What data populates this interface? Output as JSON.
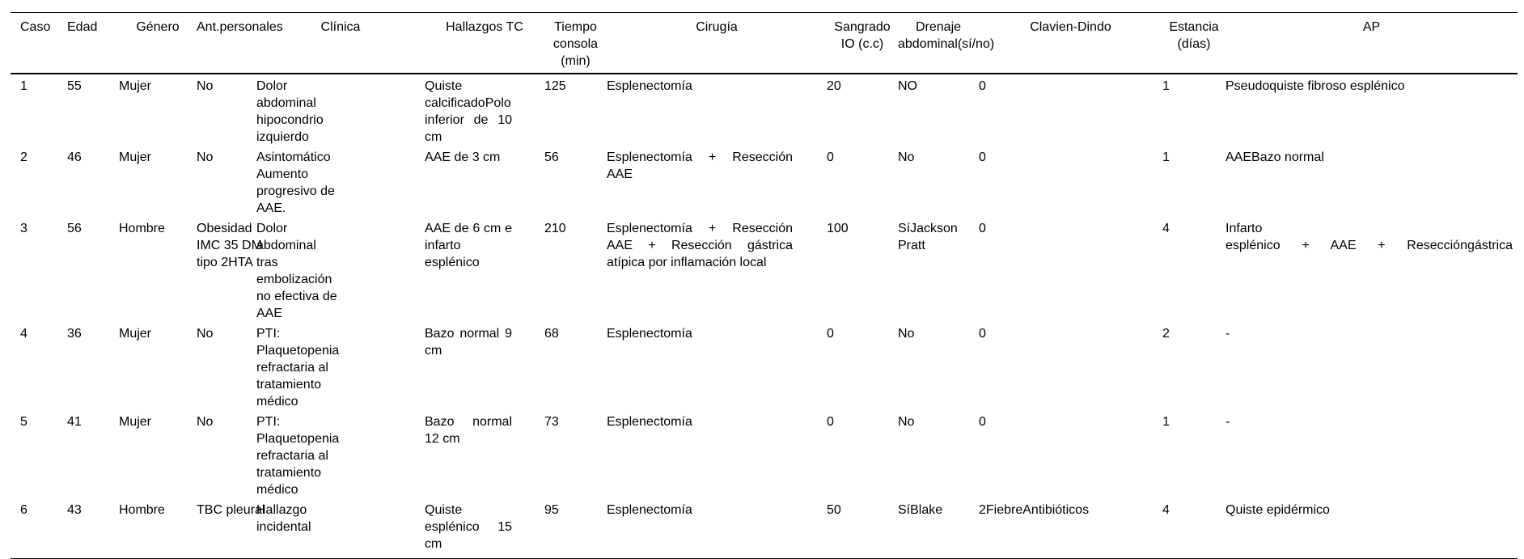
{
  "table": {
    "columns": [
      {
        "key": "caso",
        "label": "Caso"
      },
      {
        "key": "edad",
        "label": "Edad"
      },
      {
        "key": "genero",
        "label": "Género"
      },
      {
        "key": "ant",
        "label": "Ant.personales"
      },
      {
        "key": "clinica",
        "label": "Clínica"
      },
      {
        "key": "tc",
        "label": "Hallazgos TC"
      },
      {
        "key": "tiempo",
        "label": "Tiempo\nconsola\n(min)"
      },
      {
        "key": "cirugia",
        "label": "Cirugía"
      },
      {
        "key": "sangrado",
        "label": "Sangrado\nIO (c.c)"
      },
      {
        "key": "drenaje",
        "label": "Drenaje\nabdominal(sí/no)"
      },
      {
        "key": "clavien",
        "label": "Clavien-Dindo"
      },
      {
        "key": "estancia",
        "label": "Estancia\n(días)"
      },
      {
        "key": "ap",
        "label": "AP"
      }
    ],
    "rows": [
      [
        "1",
        "55",
        "Mujer",
        "No",
        "Dolor abdominal hipocondrio izquierdo",
        "Quiste calcificadoPolo inferior de 10 cm",
        "125",
        "Esplenectomía",
        "20",
        "NO",
        "0",
        "1",
        "Pseudoquiste fibroso esplénico"
      ],
      [
        "2",
        "46",
        "Mujer",
        "No",
        "Asintomático Aumento progresivo de AAE.",
        "AAE de 3 cm",
        "56",
        "Esplenectomía + Resección AAE",
        "0",
        "No",
        "0",
        "1",
        "AAEBazo normal"
      ],
      [
        "3",
        "56",
        "Hombre",
        "Obesidad IMC 35 DM tipo 2HTA",
        "Dolor abdominal tras embolización no efectiva de AAE",
        "AAE de 6  cm e infarto esplénico",
        "210",
        "Esplenectomía + Resección AAE + Resección gástrica atípica por inflamación local",
        "100",
        "SíJackson Pratt",
        "0",
        "4",
        "Infarto\nesplénico + AAE + Reseccióngástrica"
      ],
      [
        "4",
        "36",
        "Mujer",
        "No",
        "PTI: Plaquetopenia refractaria al tratamiento médico",
        "Bazo normal 9 cm",
        "68",
        "Esplenectomía",
        "0",
        "No",
        "0",
        "2",
        "-"
      ],
      [
        "5",
        "41",
        "Mujer",
        "No",
        "PTI: Plaquetopenia refractaria al tratamiento médico",
        "Bazo normal 12 cm",
        "73",
        "Esplenectomía",
        "0",
        "No",
        "0",
        "1",
        "-"
      ],
      [
        "6",
        "43",
        "Hombre",
        "TBC pleural",
        "Hallazgo incidental",
        "Quiste esplénico 15 cm",
        "95",
        "Esplenectomía",
        "50",
        "SíBlake",
        "2FiebreAntibióticos",
        "4",
        "Quiste epidérmico"
      ]
    ],
    "text_color": "#000000",
    "rule_color": "#000000",
    "background_color": "#ffffff"
  }
}
